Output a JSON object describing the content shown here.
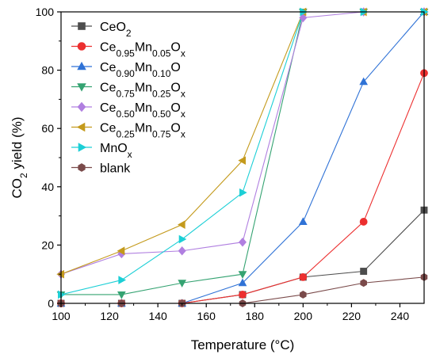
{
  "chart_data": {
    "type": "line",
    "xlabel": "Temperature (°C)",
    "ylabel_parts": [
      {
        "t": "CO"
      },
      {
        "t": "2",
        "sub": true
      },
      {
        "t": " yield (%)"
      }
    ],
    "xlim": [
      100,
      250
    ],
    "ylim": [
      0,
      100
    ],
    "x_ticks": [
      100,
      120,
      140,
      160,
      180,
      200,
      220,
      240
    ],
    "y_ticks": [
      0,
      20,
      40,
      60,
      80,
      100
    ],
    "x_tick_labels": [
      "100",
      "120",
      "140",
      "160",
      "180",
      "200",
      "220",
      "240"
    ],
    "y_tick_labels": [
      "0",
      "20",
      "40",
      "60",
      "80",
      "100"
    ],
    "legend_position": "top-left",
    "grid": false,
    "series": [
      {
        "name": "CeO2",
        "name_parts": [
          {
            "t": "CeO"
          },
          {
            "t": "2",
            "sub": true
          }
        ],
        "color": "#4d4d4d",
        "marker": "square",
        "x": [
          100,
          125,
          150,
          175,
          200,
          225,
          250
        ],
        "y": [
          0,
          0,
          0,
          3,
          9,
          11,
          32
        ]
      },
      {
        "name": "Ce0.95Mn0.05Ox",
        "name_parts": [
          {
            "t": "Ce"
          },
          {
            "t": "0.95",
            "sub": true
          },
          {
            "t": "Mn"
          },
          {
            "t": "0.05",
            "sub": true
          },
          {
            "t": "O"
          },
          {
            "t": "x",
            "sub": true
          }
        ],
        "color": "#ec2f2f",
        "marker": "circle",
        "x": [
          100,
          125,
          150,
          175,
          200,
          225,
          250
        ],
        "y": [
          0,
          0,
          0,
          3,
          9,
          28,
          79
        ]
      },
      {
        "name": "Ce0.90Mn0.10O",
        "name_parts": [
          {
            "t": "Ce"
          },
          {
            "t": "0.90",
            "sub": true
          },
          {
            "t": "Mn"
          },
          {
            "t": "0.10",
            "sub": true
          },
          {
            "t": "O"
          }
        ],
        "color": "#2f72d6",
        "marker": "triangle-up",
        "x": [
          100,
          125,
          150,
          175,
          200,
          225,
          250
        ],
        "y": [
          0,
          0,
          0,
          7,
          28,
          76,
          100
        ]
      },
      {
        "name": "Ce0.75Mn0.25Ox",
        "name_parts": [
          {
            "t": "Ce"
          },
          {
            "t": "0.75",
            "sub": true
          },
          {
            "t": "Mn"
          },
          {
            "t": "0.25",
            "sub": true
          },
          {
            "t": "O"
          },
          {
            "t": "x",
            "sub": true
          }
        ],
        "color": "#35a372",
        "marker": "triangle-down",
        "x": [
          100,
          125,
          150,
          175,
          200,
          225,
          250
        ],
        "y": [
          3,
          3,
          7,
          10,
          100,
          100,
          100
        ]
      },
      {
        "name": "Ce0.50Mn0.50Ox",
        "name_parts": [
          {
            "t": "Ce"
          },
          {
            "t": "0.50",
            "sub": true
          },
          {
            "t": "Mn"
          },
          {
            "t": "0.50",
            "sub": true
          },
          {
            "t": "O"
          },
          {
            "t": "x",
            "sub": true
          }
        ],
        "color": "#b07fe0",
        "marker": "diamond",
        "x": [
          100,
          125,
          150,
          175,
          200,
          225,
          250
        ],
        "y": [
          10,
          17,
          18,
          21,
          98,
          100,
          100
        ]
      },
      {
        "name": "Ce0.25Mn0.75Ox",
        "name_parts": [
          {
            "t": "Ce"
          },
          {
            "t": "0.25",
            "sub": true
          },
          {
            "t": "Mn"
          },
          {
            "t": "0.75",
            "sub": true
          },
          {
            "t": "O"
          },
          {
            "t": "x",
            "sub": true
          }
        ],
        "color": "#c49a1c",
        "marker": "triangle-left",
        "x": [
          100,
          125,
          150,
          175,
          200,
          225,
          250
        ],
        "y": [
          10,
          18,
          27,
          49,
          100,
          100,
          100
        ]
      },
      {
        "name": "MnOx",
        "name_parts": [
          {
            "t": "MnO"
          },
          {
            "t": "x",
            "sub": true
          }
        ],
        "color": "#1ccfd6",
        "marker": "triangle-right",
        "x": [
          100,
          125,
          150,
          175,
          200,
          225,
          250
        ],
        "y": [
          3,
          8,
          22,
          38,
          100,
          100,
          100
        ]
      },
      {
        "name": "blank",
        "name_parts": [
          {
            "t": "blank"
          }
        ],
        "color": "#7a4a4a",
        "marker": "hexagon",
        "x": [
          100,
          125,
          150,
          175,
          200,
          225,
          250
        ],
        "y": [
          0,
          0,
          0,
          0,
          3,
          7,
          9
        ]
      }
    ]
  }
}
